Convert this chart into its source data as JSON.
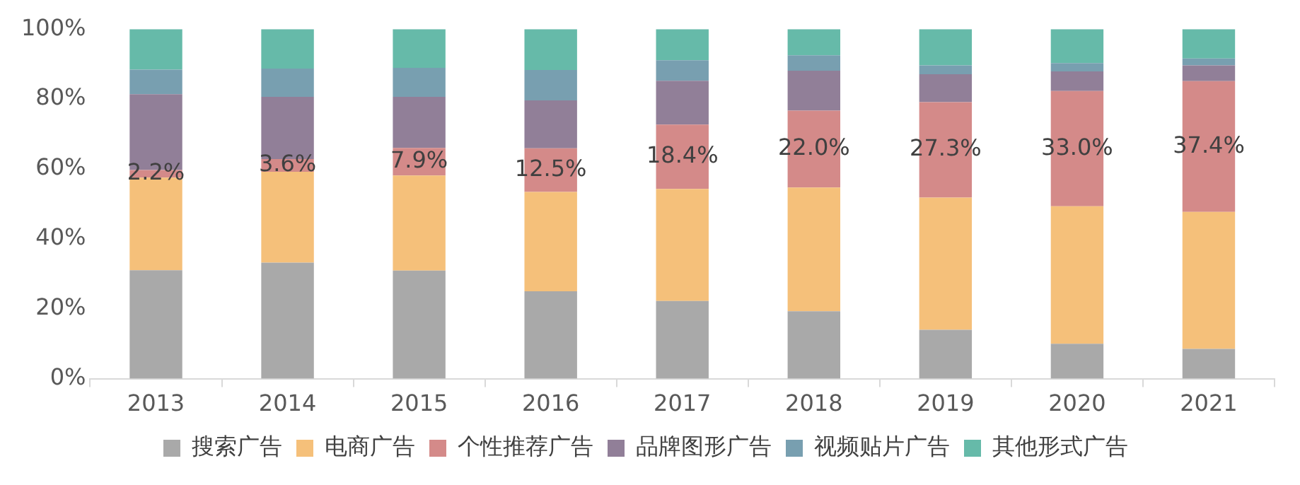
{
  "chart_data": {
    "type": "bar",
    "stacked": true,
    "categories": [
      "2013",
      "2014",
      "2015",
      "2016",
      "2017",
      "2018",
      "2019",
      "2020",
      "2021"
    ],
    "series": [
      {
        "name": "搜索广告",
        "color": "#a9a9a9",
        "values": [
          31.0,
          33.2,
          30.9,
          25.0,
          22.2,
          19.3,
          14.0,
          10.0,
          8.5
        ]
      },
      {
        "name": "电商广告",
        "color": "#f5c07a",
        "values": [
          26.5,
          26.0,
          27.2,
          28.4,
          32.1,
          35.4,
          37.8,
          39.3,
          39.2
        ]
      },
      {
        "name": "个性推荐广告",
        "color": "#d48a89",
        "values": [
          2.2,
          3.6,
          7.9,
          12.5,
          18.4,
          22.0,
          27.3,
          33.0,
          37.4
        ],
        "value_labels": [
          "2.2%",
          "3.6%",
          "7.9%",
          "12.5%",
          "18.4%",
          "22.0%",
          "27.3%",
          "33.0%",
          "37.4%"
        ]
      },
      {
        "name": "品牌图形广告",
        "color": "#917f98",
        "values": [
          21.7,
          17.8,
          14.6,
          13.7,
          12.5,
          11.4,
          8.0,
          5.6,
          4.5
        ]
      },
      {
        "name": "视频贴片广告",
        "color": "#789fb0",
        "values": [
          7.0,
          8.1,
          8.3,
          8.7,
          5.9,
          4.4,
          2.5,
          2.4,
          2.0
        ]
      },
      {
        "name": "其他形式广告",
        "color": "#66baa9",
        "values": [
          11.6,
          11.3,
          11.1,
          11.7,
          8.9,
          7.5,
          10.4,
          9.7,
          8.4
        ]
      }
    ],
    "ylim": [
      0,
      100
    ],
    "yticks": [
      {
        "value": 0,
        "label": "0%"
      },
      {
        "value": 20,
        "label": "20%"
      },
      {
        "value": 40,
        "label": "40%"
      },
      {
        "value": 60,
        "label": "60%"
      },
      {
        "value": 80,
        "label": "80%"
      },
      {
        "value": 100,
        "label": "100%"
      }
    ],
    "grid": false,
    "legend": "bottom"
  }
}
